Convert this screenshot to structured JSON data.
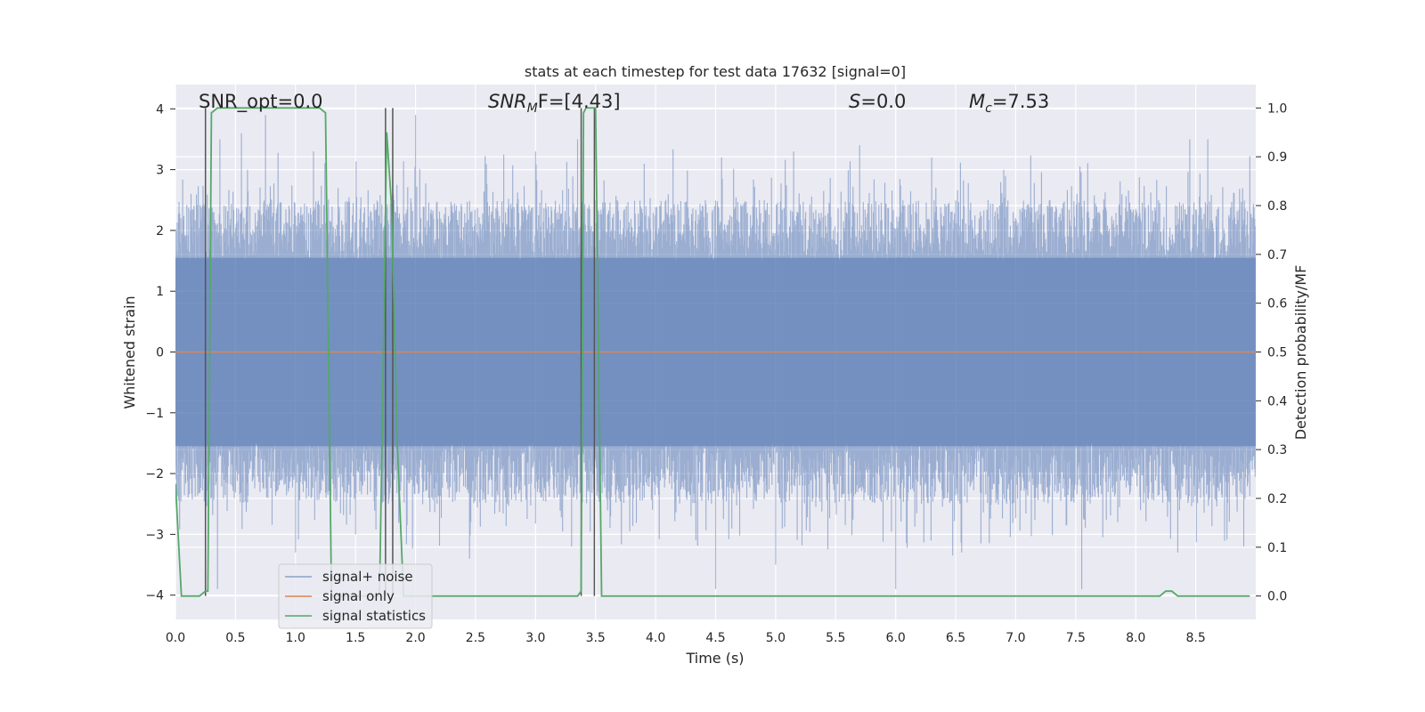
{
  "chart_data": {
    "type": "line",
    "title": "stats at each timestep for test data 17632 [signal=0]",
    "xlabel": "Time (s)",
    "ylabel": "Whitened strain",
    "ylabel_right": "Detection probability/MF",
    "xlim": [
      0.0,
      9.0
    ],
    "ylim": [
      -4.4,
      4.4
    ],
    "ylim_right": [
      -0.048,
      1.048
    ],
    "x_ticks": [
      "0.0",
      "0.5",
      "1.0",
      "1.5",
      "2.0",
      "2.5",
      "3.0",
      "3.5",
      "4.0",
      "4.5",
      "5.0",
      "5.5",
      "6.0",
      "6.5",
      "7.0",
      "7.5",
      "8.0",
      "8.5"
    ],
    "y_ticks": [
      "4",
      "3",
      "2",
      "1",
      "0",
      "−1",
      "−2",
      "−3",
      "−4"
    ],
    "y_ticks_right": [
      "1.0",
      "0.9",
      "0.8",
      "0.7",
      "0.6",
      "0.5",
      "0.4",
      "0.3",
      "0.2",
      "0.1",
      "0.0"
    ],
    "annotations": {
      "snr_opt": "SNR_opt=0.0",
      "snr_mf_sym": "SNR",
      "snr_mf_sub": "M",
      "snr_mf_rest": "F=[4.43]",
      "s_sym": "S",
      "s_rest": "=0.0",
      "mc_sym": "M",
      "mc_sub": "c",
      "mc_rest": "=7.53"
    },
    "grid": true,
    "legend_position": "lower-left",
    "series": [
      {
        "name": "signal+ noise",
        "color": "#4c72b0",
        "envelope": {
          "duration_s": 9.0,
          "typical_abs_range": [
            1.5,
            2.5
          ],
          "max_abs": 4.0
        },
        "positive_spikes": [
          [
            0.37,
            3.5
          ],
          [
            0.55,
            3.6
          ],
          [
            0.6,
            3.0
          ],
          [
            0.75,
            3.9
          ],
          [
            1.15,
            3.3
          ],
          [
            2.0,
            3.9
          ],
          [
            3.0,
            3.3
          ],
          [
            3.35,
            3.5
          ],
          [
            4.55,
            3.2
          ],
          [
            5.15,
            3.3
          ],
          [
            5.7,
            3.4
          ],
          [
            6.3,
            3.2
          ],
          [
            6.9,
            3.0
          ],
          [
            8.45,
            3.5
          ],
          [
            8.6,
            3.5
          ]
        ],
        "negative_spikes": [
          [
            0.35,
            -3.9
          ],
          [
            1.0,
            -3.3
          ],
          [
            1.5,
            -3.0
          ],
          [
            2.45,
            -3.4
          ],
          [
            3.3,
            -3.2
          ],
          [
            4.5,
            -3.9
          ],
          [
            5.0,
            -3.5
          ],
          [
            6.0,
            -3.9
          ],
          [
            6.55,
            -3.3
          ],
          [
            7.55,
            -3.9
          ],
          [
            8.35,
            -3.3
          ],
          [
            8.9,
            -3.2
          ]
        ]
      },
      {
        "name": "signal only",
        "color": "#dd8452",
        "x": [
          0.0,
          9.0
        ],
        "y": [
          0.0,
          0.0
        ]
      },
      {
        "name": "signal statistics",
        "color": "#55a868",
        "axis": "right",
        "x": [
          0.0,
          0.05,
          0.1,
          0.2,
          0.25,
          0.27,
          0.3,
          0.35,
          1.2,
          1.25,
          1.3,
          1.35,
          1.7,
          1.72,
          1.76,
          1.8,
          1.85,
          1.9,
          1.95,
          3.35,
          3.38,
          3.4,
          3.42,
          3.5,
          3.55,
          3.6,
          3.65,
          8.2,
          8.25,
          8.3,
          8.35,
          8.95
        ],
        "y": [
          0.23,
          0.0,
          0.0,
          0.0,
          0.01,
          0.01,
          0.99,
          1.0,
          1.0,
          0.99,
          0.0,
          0.0,
          0.0,
          0.3,
          0.95,
          0.8,
          0.3,
          0.0,
          0.0,
          0.0,
          0.01,
          0.99,
          1.0,
          1.0,
          0.0,
          0.0,
          0.0,
          0.0,
          0.01,
          0.01,
          0.0,
          0.0
        ]
      }
    ],
    "vertical_markers_x": [
      0.25,
      1.75,
      1.81,
      3.38,
      3.49
    ],
    "markers_range_right": [
      0.0,
      1.0
    ]
  }
}
